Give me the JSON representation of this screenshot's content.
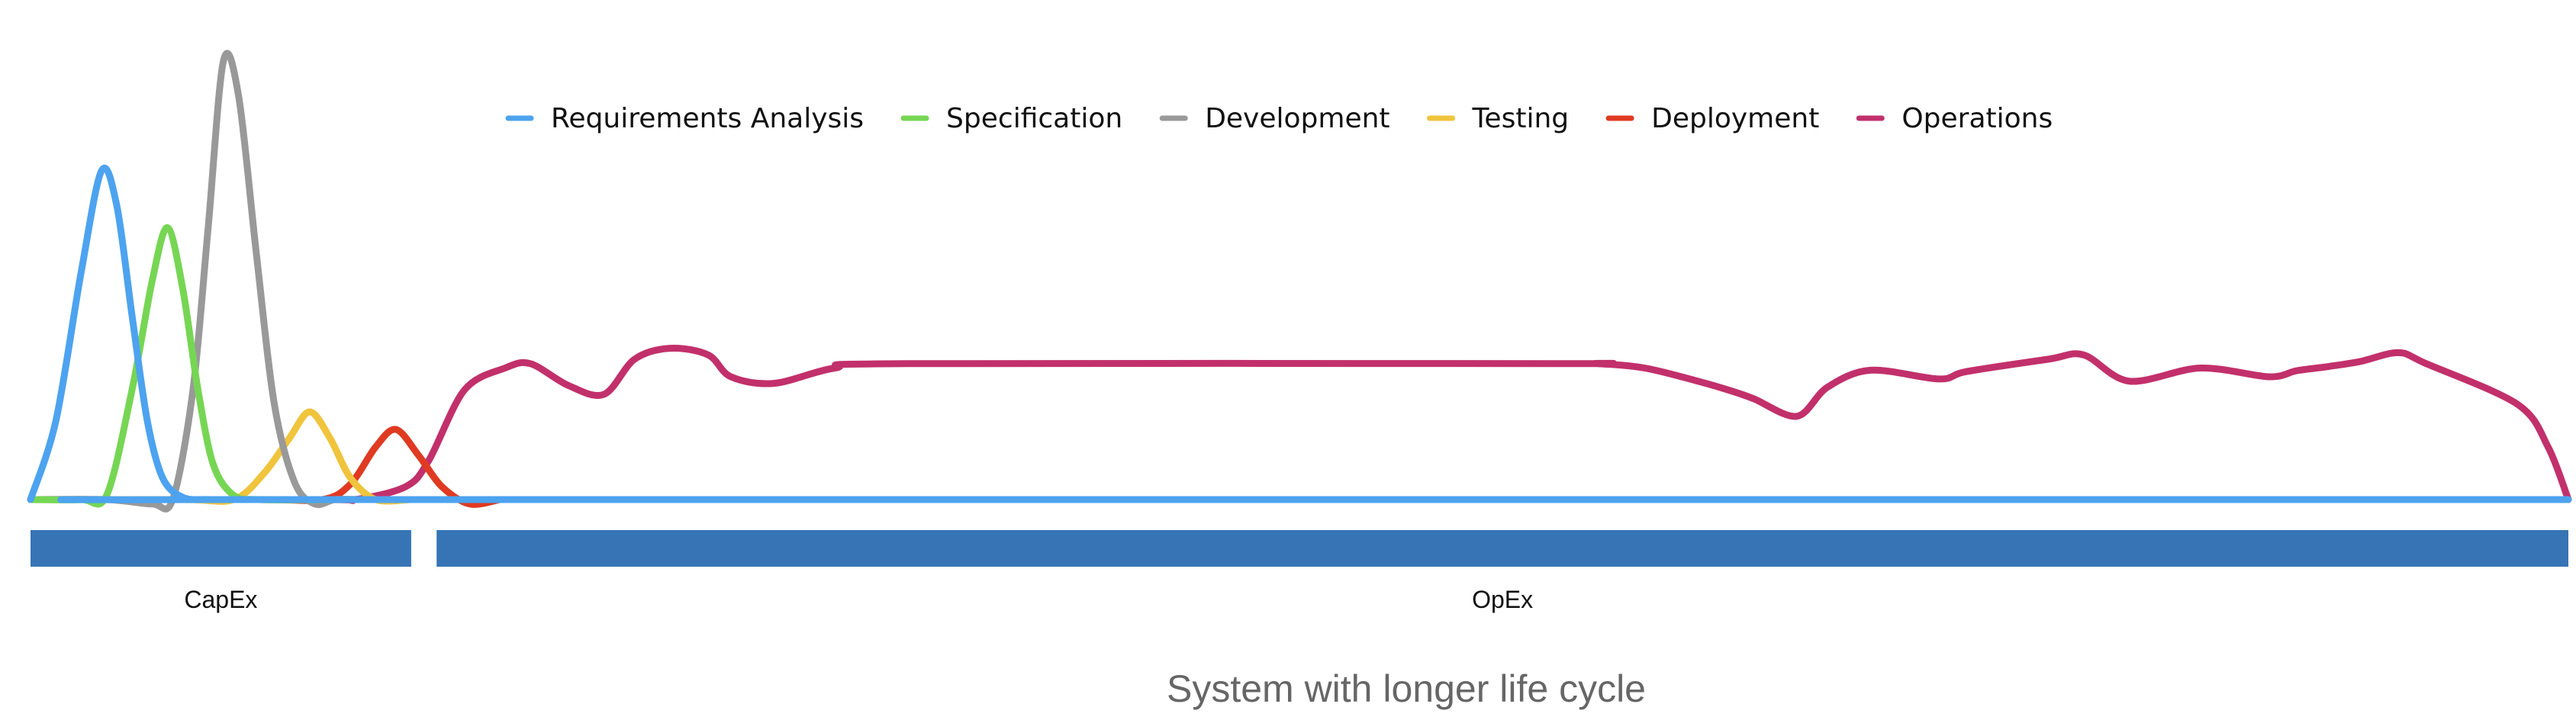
{
  "chart_data": {
    "type": "line",
    "title": "",
    "caption": "System with longer life cycle",
    "xlabel": "",
    "ylabel": "",
    "xlim": [
      0,
      100
    ],
    "ylim": [
      0,
      100
    ],
    "grid": false,
    "axes_visible": false,
    "legend_position": "top-center",
    "series": [
      {
        "name": "Requirements Analysis",
        "color": "#4da3ef",
        "x": [
          0,
          1,
          2,
          2.8,
          3.4,
          4,
          4.6,
          5.2,
          6,
          7,
          8,
          100
        ],
        "y": [
          0,
          18,
          52,
          75,
          67,
          42,
          18,
          5,
          0.5,
          0,
          0,
          0
        ]
      },
      {
        "name": "Specification",
        "color": "#76d654",
        "x": [
          0,
          2,
          3,
          4,
          4.8,
          5.4,
          6,
          6.6,
          7.2,
          8,
          9,
          12
        ],
        "y": [
          0,
          0,
          1,
          25,
          50,
          62,
          48,
          25,
          8,
          1,
          0,
          0
        ]
      },
      {
        "name": "Development",
        "color": "#999999",
        "x": [
          0,
          3,
          4.8,
          5.6,
          6.4,
          7,
          7.6,
          8.2,
          8.9,
          9.6,
          10.4,
          11.2,
          12,
          13
        ],
        "y": [
          0,
          0,
          -1,
          0,
          25,
          62,
          100,
          92,
          56,
          22,
          4,
          -1,
          0,
          0
        ]
      },
      {
        "name": "Testing",
        "color": "#f0c43c",
        "x": [
          0,
          6,
          8,
          9.2,
          10.2,
          11,
          11.8,
          12.6,
          13.6,
          15
        ],
        "y": [
          0,
          0,
          0,
          6,
          14,
          20,
          14,
          5,
          0,
          0
        ]
      },
      {
        "name": "Deployment",
        "color": "#e03a22",
        "x": [
          0,
          9,
          11.5,
          12.6,
          13.6,
          14.4,
          15.3,
          16.2,
          17.3,
          18.5
        ],
        "y": [
          0,
          0,
          0,
          3.5,
          12,
          16,
          10,
          3,
          -1,
          0
        ]
      },
      {
        "name": "Operations",
        "color": "#c2306b",
        "x": [
          0,
          11.5,
          12.8,
          14.8,
          15.7,
          17.1,
          18.7,
          19.7,
          21.2,
          22.6,
          23.8,
          25.2,
          26.7,
          27.6,
          29.3,
          31.7,
          34.5,
          60.1,
          61.7,
          63.6,
          65.7,
          66.9,
          67.9,
          69.6,
          70.8,
          72.5,
          75.2,
          76.3,
          79.5,
          80.9,
          82.7,
          85.5,
          88.2,
          89.3,
          90.5,
          91.8,
          93.3,
          94.4,
          98,
          99.2,
          100
        ],
        "y": [
          0,
          0,
          0,
          3,
          9,
          25,
          30,
          31,
          26,
          24,
          32,
          34.5,
          33,
          28,
          26.5,
          30,
          31,
          31,
          31,
          30,
          27,
          25,
          23,
          19,
          25.6,
          29.5,
          27.5,
          29.2,
          32,
          33,
          27,
          30,
          28,
          29.4,
          30.3,
          31.5,
          33.5,
          31,
          21.7,
          12,
          0
        ]
      }
    ],
    "phases": [
      {
        "label": "CapEx",
        "start": 0,
        "end": 15,
        "color": "#3674b5"
      },
      {
        "label": "OpEx",
        "start": 16,
        "end": 100,
        "color": "#3674b5"
      }
    ]
  }
}
